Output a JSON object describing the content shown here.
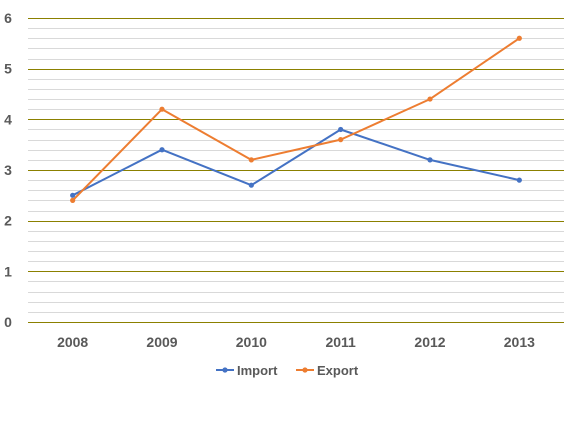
{
  "chart_data": {
    "type": "line",
    "title": "",
    "xlabel": "",
    "ylabel": "",
    "categories": [
      "2008",
      "2009",
      "2010",
      "2011",
      "2012",
      "2013"
    ],
    "ylim": [
      0,
      6
    ],
    "yticks": [
      "0",
      "1",
      "2",
      "3",
      "4",
      "5",
      "6"
    ],
    "grid": true,
    "legend_position": "bottom",
    "series": [
      {
        "name": "Import",
        "color": "#4472C4",
        "values": [
          2.5,
          3.4,
          2.7,
          3.8,
          3.2,
          2.8
        ]
      },
      {
        "name": "Export",
        "color": "#ED7D31",
        "values": [
          2.4,
          4.2,
          3.2,
          3.6,
          4.4,
          5.6
        ]
      }
    ],
    "major_grid_color": "#8B8000",
    "minor_grid_color": "#D9D9D9"
  }
}
